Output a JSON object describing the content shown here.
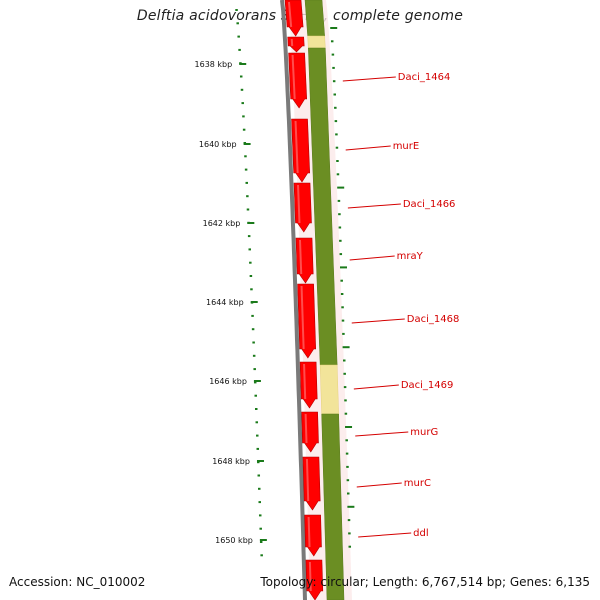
{
  "title": "Delftia acidovorans SPH-1, complete genome",
  "accession": "Accession: NC_010002",
  "topology": "Topology: circular; Length: 6,767,514 bp; Genes: 6,135",
  "colors": {
    "backbone": "#7a7a7a",
    "cds_forward": "#ff0000",
    "cds_track": "#6b8e23",
    "gap_track": "#f2e49a",
    "ruler": "#1a7a1a",
    "gene_label": "#d40000"
  },
  "ruler": {
    "unit": "kbp",
    "labels": [
      "1638 kbp",
      "1640 kbp",
      "1642 kbp",
      "1644 kbp",
      "1646 kbp",
      "1648 kbp",
      "1650 kbp"
    ]
  },
  "genes": [
    {
      "name": "Daci_1464"
    },
    {
      "name": "murE"
    },
    {
      "name": "Daci_1466"
    },
    {
      "name": "mraY"
    },
    {
      "name": "Daci_1468"
    },
    {
      "name": "Daci_1469"
    },
    {
      "name": "murG"
    },
    {
      "name": "murC"
    },
    {
      "name": "ddl"
    }
  ]
}
